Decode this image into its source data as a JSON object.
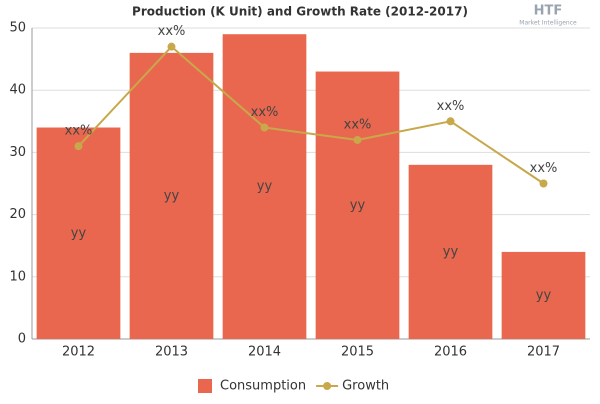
{
  "chart_data": {
    "type": "combo",
    "title": "Production (K Unit) and Growth Rate (2012-2017)",
    "logo": {
      "name": "HTF",
      "tagline": "Market Intelligence"
    },
    "categories": [
      "2012",
      "2013",
      "2014",
      "2015",
      "2016",
      "2017"
    ],
    "series": [
      {
        "name": "Consumption",
        "type": "bar",
        "color": "#e9674e",
        "values": [
          34,
          46,
          49,
          43,
          28,
          14
        ],
        "value_labels": [
          "yy",
          "yy",
          "yy",
          "yy",
          "yy",
          "yy"
        ]
      },
      {
        "name": "Growth",
        "type": "line",
        "color": "#c8a84b",
        "values": [
          31,
          47,
          34,
          32,
          35,
          25
        ],
        "value_labels": [
          "xx%",
          "xx%",
          "xx%",
          "xx%",
          "xx%",
          "xx%"
        ]
      }
    ],
    "ylim": [
      0,
      50
    ],
    "yticks": [
      0,
      10,
      20,
      30,
      40,
      50
    ],
    "grid": true,
    "legend": "bottom"
  }
}
